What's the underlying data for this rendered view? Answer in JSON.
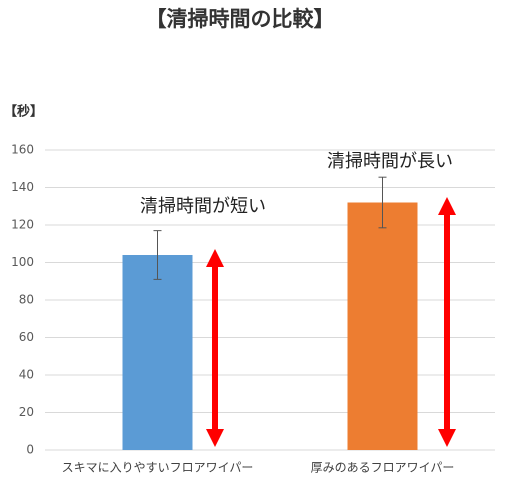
{
  "chart_data": {
    "type": "bar",
    "title": "【清掃時間の比較】",
    "ylabel": "【秒】",
    "categories": [
      "スキマに入りやすいフロアワイパー",
      "厚みのあるフロアワイパー"
    ],
    "values": [
      104,
      132
    ],
    "errors": [
      13,
      13.5
    ],
    "colors": [
      "#5b9bd5",
      "#ed7d31"
    ],
    "ylim": [
      0,
      160
    ],
    "yticks": [
      0,
      20,
      40,
      60,
      80,
      100,
      120,
      140,
      160
    ],
    "grid": true,
    "annotations": [
      "清掃時間が短い",
      "清掃時間が長い"
    ]
  }
}
